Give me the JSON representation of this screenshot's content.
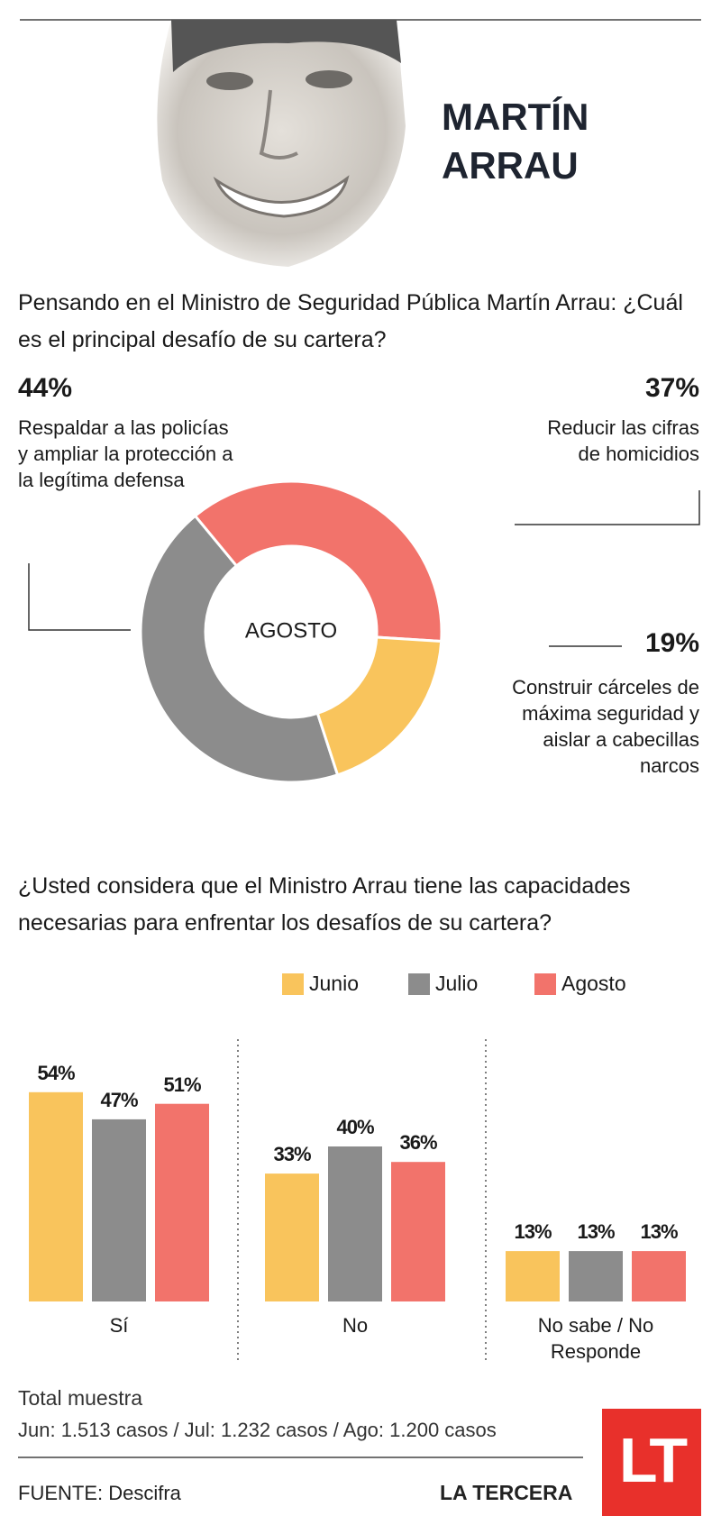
{
  "header": {
    "name_lines": [
      "MARTÍN",
      "ARRAU"
    ]
  },
  "chart_data": [
    {
      "type": "donut",
      "title": "Pensando en el Ministro de Seguridad Pública Martín Arrau: ¿Cuál es el principal desafío de su cartera?",
      "center_label": "AGOSTO",
      "categories": [
        "Respaldar a las policías y ampliar la protección a la legítima defensa",
        "Reducir las cifras de homicidios",
        "Construir cárceles de máxima seguridad y aislar a cabecillas narcos"
      ],
      "values": [
        44,
        37,
        19
      ],
      "value_labels": [
        "44%",
        "37%",
        "19%"
      ],
      "colors": [
        "#8c8c8c",
        "#f2736b",
        "#f9c45c"
      ]
    },
    {
      "type": "bar",
      "title": "¿Usted considera que el Ministro Arrau tiene las capacidades necesarias para enfrentar los desafíos de su cartera?",
      "categories": [
        "Sí",
        "No",
        "No sabe / No Responde"
      ],
      "series": [
        {
          "name": "Junio",
          "color": "#f9c45c",
          "values": [
            54,
            33,
            13
          ],
          "value_labels": [
            "54%",
            "33%",
            "13%"
          ]
        },
        {
          "name": "Julio",
          "color": "#8c8c8c",
          "values": [
            47,
            40,
            13
          ],
          "value_labels": [
            "47%",
            "40%",
            "13%"
          ]
        },
        {
          "name": "Agosto",
          "color": "#f2736b",
          "values": [
            51,
            36,
            13
          ],
          "value_labels": [
            "51%",
            "36%",
            "13%"
          ]
        }
      ]
    }
  ],
  "footer": {
    "sample_title": "Total muestra",
    "sample_detail": "Jun: 1.513 casos / Jul: 1.232 casos / Ago: 1.200 casos",
    "source": "FUENTE: Descifra",
    "brand": "LA TERCERA",
    "logo": "LT"
  }
}
